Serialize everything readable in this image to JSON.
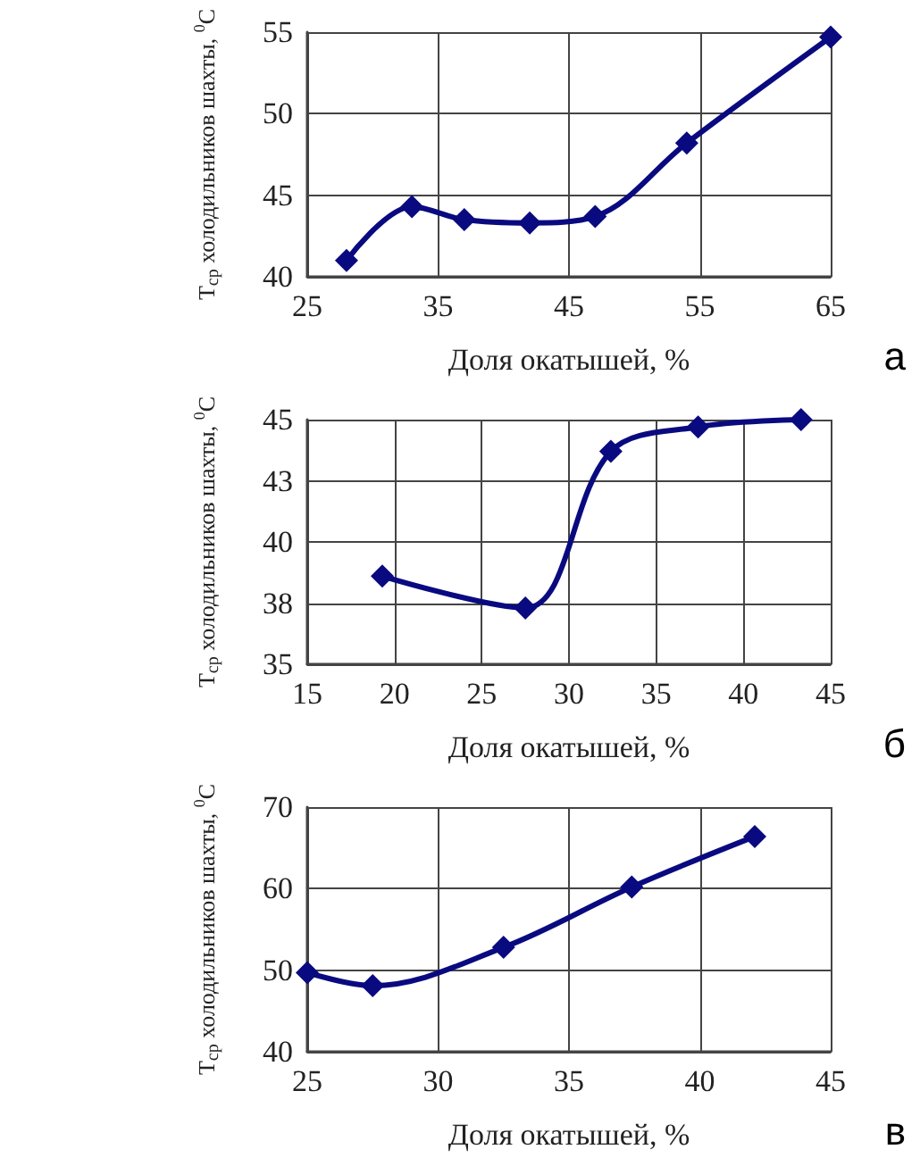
{
  "chart_data": [
    {
      "type": "line",
      "xlabel": "Доля окатышей, %",
      "ylabel": "T$_{ср}$ холодильников шахты, $^{0}$C",
      "annotations": [
        "а"
      ],
      "x": [
        28,
        33,
        37,
        42,
        47,
        54,
        65
      ],
      "series": [
        {
          "color": "#0a0a80",
          "values": [
            41,
            44.3,
            43.5,
            43.3,
            43.7,
            48.2,
            54.7
          ]
        }
      ],
      "xlim": [
        25,
        65
      ],
      "xticks": [
        25,
        35,
        45,
        55,
        65
      ],
      "ylim": [
        40,
        55
      ],
      "yticks": [
        40,
        45,
        50,
        55
      ],
      "grid": true,
      "marker": "diamond",
      "line_style": "solid"
    },
    {
      "type": "line",
      "xlabel": "Доля окатышей, %",
      "ylabel": "T$_{ср}$ холодильников шахты, $^{0}$C",
      "annotations": [
        "б"
      ],
      "x": [
        19.3,
        27.5,
        32.4,
        37.4,
        43.3
      ],
      "series": [
        {
          "color": "#0a0a80",
          "values": [
            38.6,
            37.3,
            43.7,
            44.7,
            45.0
          ]
        }
      ],
      "xlim": [
        15,
        45
      ],
      "xticks": [
        15,
        20,
        25,
        30,
        35,
        40,
        45
      ],
      "ylim": [
        35,
        45
      ],
      "yticks": [
        35,
        {
          "value": 37.5,
          "label": "38"
        },
        40,
        {
          "value": 42.5,
          "label": "43"
        },
        45
      ],
      "grid": true,
      "marker": "diamond",
      "line_style": "solid"
    },
    {
      "type": "line",
      "xlabel": "Доля окатышей, %",
      "ylabel": "T$_{ср}$ холодильников шахты, $^{0}$C",
      "annotations": [
        "в"
      ],
      "x": [
        25,
        27.5,
        32.5,
        37.4,
        42.1
      ],
      "series": [
        {
          "color": "#0a0a80",
          "values": [
            49.7,
            48.1,
            52.8,
            60.2,
            66.4
          ]
        }
      ],
      "xlim": [
        25,
        45
      ],
      "xticks": [
        25,
        30,
        35,
        40,
        45
      ],
      "ylim": [
        40,
        70
      ],
      "yticks": [
        40,
        50,
        60,
        70
      ],
      "grid": true,
      "marker": "diamond",
      "line_style": "solid"
    }
  ]
}
